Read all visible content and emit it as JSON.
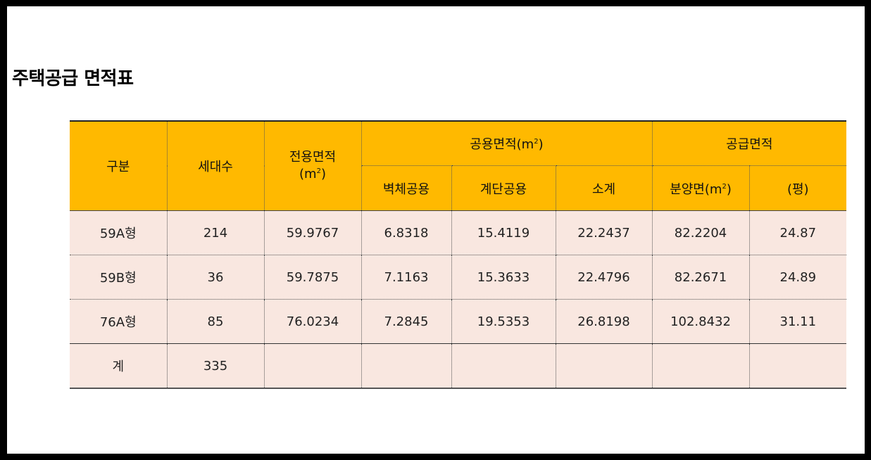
{
  "title": "주택공급 면적표",
  "header": {
    "type": "구분",
    "households": "세대수",
    "exclusive_area": "전용면적",
    "exclusive_unit": "(m",
    "common_area": "공용면적(m",
    "supply_area": "공급면적",
    "wall_common": "벽체공용",
    "stair_common": "계단공용",
    "subtotal": "소계",
    "sale_area": "분양면(m",
    "pyeong": "(평)",
    "superscript": "2",
    "close_paren": ")"
  },
  "rows": [
    {
      "type": "59A형",
      "households": "214",
      "exclusive": "59.9767",
      "wall": "6.8318",
      "stair": "15.4119",
      "subtotal": "22.2437",
      "sale": "82.2204",
      "pyeong": "24.87"
    },
    {
      "type": "59B형",
      "households": "36",
      "exclusive": "59.7875",
      "wall": "7.1163",
      "stair": "15.3633",
      "subtotal": "22.4796",
      "sale": "82.2671",
      "pyeong": "24.89"
    },
    {
      "type": "76A형",
      "households": "85",
      "exclusive": "76.0234",
      "wall": "7.2845",
      "stair": "19.5353",
      "subtotal": "26.8198",
      "sale": "102.8432",
      "pyeong": "31.11"
    }
  ],
  "total": {
    "type": "계",
    "households": "335"
  },
  "colors": {
    "header_bg": "#ffb900",
    "body_bg": "#f9e7e0"
  }
}
